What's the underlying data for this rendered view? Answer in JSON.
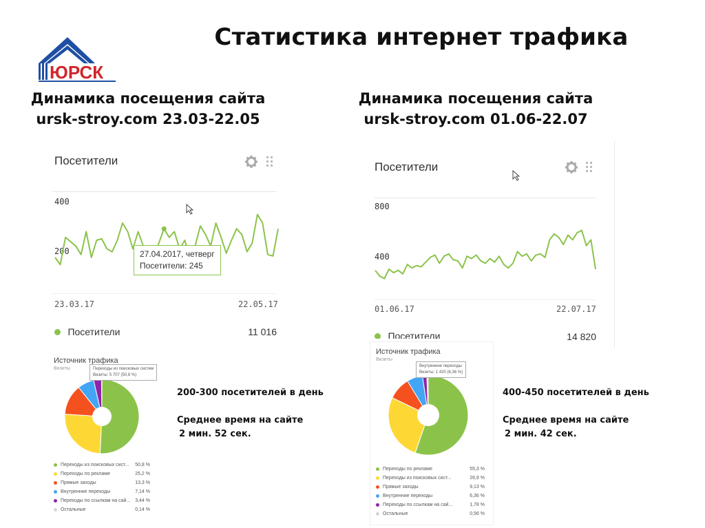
{
  "title": "Статистика интернет трафика",
  "logo": {
    "text": "ЮРСК",
    "colors": {
      "roof": "#1e4fa3",
      "text": "#d0262b"
    }
  },
  "left": {
    "heading_line1": "Динамика посещения сайта",
    "heading_line2": "ursk-stroy.com 23.03-22.05",
    "widget_title": "Посетители",
    "gear_icon": "gear-icon",
    "drag_icon": "drag-handle-icon",
    "y_ticks": [
      "400",
      "200"
    ],
    "date_start": "23.03.17",
    "date_end": "22.05.17",
    "tooltip_line1": "27.04.2017, четверг",
    "tooltip_line2": "Посетители: 245",
    "legend_label": "Посетители",
    "total": "11 016",
    "stat_line1": "200-300 посетителей в день",
    "stat_line2": "Среднее время на сайте",
    "stat_line3": "2 мин. 52 сек.",
    "pie_title": "Источник трафика",
    "pie_sub": "Визиты",
    "pie_tip1": "Переходы из поисковых систем",
    "pie_tip2": "Визиты: 5 707 (50,8 %)",
    "pie_legend": [
      {
        "label": "Переходы из поисковых сист...",
        "value": "50,8 %",
        "color": "#8bc34a"
      },
      {
        "label": "Переходы по рекламе",
        "value": "25,2 %",
        "color": "#fdd835"
      },
      {
        "label": "Прямые заходы",
        "value": "13,3 %",
        "color": "#f4511e"
      },
      {
        "label": "Внутренние переходы",
        "value": "7,14 %",
        "color": "#42a5f5"
      },
      {
        "label": "Переходы по ссылкам на сай...",
        "value": "3,44 %",
        "color": "#8e24aa"
      },
      {
        "label": "Остальные",
        "value": "0,14 %",
        "color": "#cfd8dc"
      }
    ]
  },
  "right": {
    "heading_line1": "Динамика посещения сайта",
    "heading_line2": "ursk-stroy.com 01.06-22.07",
    "widget_title": "Посетители",
    "gear_icon": "gear-icon",
    "drag_icon": "drag-handle-icon",
    "y_ticks": [
      "800",
      "400"
    ],
    "date_start": "01.06.17",
    "date_end": "22.07.17",
    "legend_label": "Посетители",
    "total": "14 820",
    "stat_line1": "400-450 посетителей в день",
    "stat_line2": "Среднее время на сайте",
    "stat_line3": "2 мин. 42 сек.",
    "pie_title": "Источник трафика",
    "pie_sub": "Визиты",
    "pie_tip1": "Внутренние переходы",
    "pie_tip2": "Визиты: 1 420 (6,36 %)",
    "pie_legend": [
      {
        "label": "Переходы по рекламе",
        "value": "55,3 %",
        "color": "#8bc34a"
      },
      {
        "label": "Переходы из поисковых сист...",
        "value": "26,9 %",
        "color": "#fdd835"
      },
      {
        "label": "Прямые заходы",
        "value": "9,13 %",
        "color": "#f4511e"
      },
      {
        "label": "Внутренние переходы",
        "value": "6,36 %",
        "color": "#42a5f5"
      },
      {
        "label": "Переходы по ссылкам на сай...",
        "value": "1,78 %",
        "color": "#8e24aa"
      },
      {
        "label": "Остальные",
        "value": "0,56 %",
        "color": "#cfd8dc"
      }
    ]
  },
  "chart_data": [
    {
      "type": "line",
      "series": [
        {
          "name": "Посетители",
          "values": [
            240,
            215,
            310,
            295,
            280,
            250,
            330,
            240,
            300,
            305,
            270,
            260,
            300,
            360,
            330,
            270,
            330,
            280,
            225,
            245,
            290,
            340,
            310,
            330,
            270,
            300,
            240,
            280,
            350,
            320,
            280,
            360,
            310,
            255,
            300,
            340,
            320,
            260,
            290,
            390,
            360,
            250,
            245,
            340
          ]
        }
      ],
      "ylim": [
        120,
        480
      ],
      "color": "#8bc34a"
    },
    {
      "type": "line",
      "series": [
        {
          "name": "Посетители",
          "values": [
            340,
            290,
            270,
            350,
            320,
            340,
            310,
            390,
            360,
            380,
            370,
            410,
            450,
            470,
            400,
            460,
            480,
            430,
            420,
            360,
            460,
            440,
            470,
            420,
            400,
            440,
            410,
            460,
            390,
            360,
            400,
            500,
            460,
            480,
            420,
            470,
            480,
            450,
            600,
            650,
            620,
            560,
            640,
            600,
            660,
            680,
            550,
            600,
            350
          ]
        }
      ],
      "ylim": [
        80,
        960
      ],
      "color": "#8bc34a"
    },
    {
      "type": "pie",
      "labels": [
        "Переходы из поисковых сист...",
        "Переходы по рекламе",
        "Прямые заходы",
        "Внутренние переходы",
        "Переходы по ссылкам на сай...",
        "Остальные"
      ],
      "values": [
        50.8,
        25.2,
        13.3,
        7.14,
        3.44,
        0.14
      ]
    },
    {
      "type": "pie",
      "labels": [
        "Переходы по рекламе",
        "Переходы из поисковых сист...",
        "Прямые заходы",
        "Внутренние переходы",
        "Переходы по ссылкам на сай...",
        "Остальные"
      ],
      "values": [
        55.3,
        26.9,
        9.13,
        6.36,
        1.78,
        0.56
      ]
    }
  ]
}
